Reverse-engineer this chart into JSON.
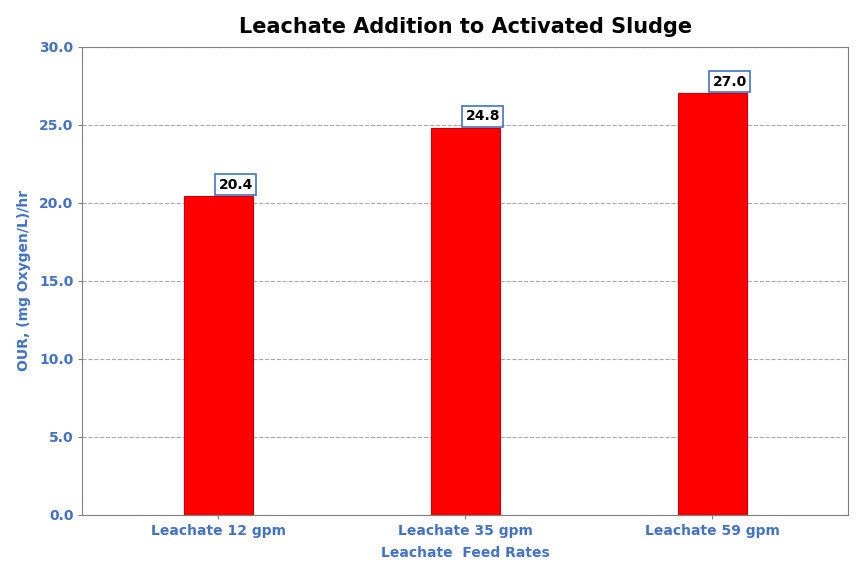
{
  "title": "Leachate Addition to Activated Sludge",
  "categories": [
    "Leachate 12 gpm",
    "Leachate 35 gpm",
    "Leachate 59 gpm"
  ],
  "values": [
    20.4,
    24.8,
    27.0
  ],
  "bar_color": "#FF0000",
  "bar_edge_color": "#CC0000",
  "xlabel": "Leachate  Feed Rates",
  "ylabel": "OUR, (mg Oxygen/L)/hr",
  "ylim": [
    0,
    30
  ],
  "yticks": [
    0.0,
    5.0,
    10.0,
    15.0,
    20.0,
    25.0,
    30.0
  ],
  "grid_color": "#AAAAAA",
  "background_color": "#FFFFFF",
  "plot_bg_color": "#FFFFFF",
  "title_fontsize": 15,
  "label_fontsize": 10,
  "tick_fontsize": 10,
  "annotation_fontsize": 10,
  "annotation_box_facecolor": "#FFFFFF",
  "annotation_box_edgecolor": "#4472C4",
  "bar_width": 0.28,
  "tick_color": "#4472C4",
  "label_color": "#4472C4",
  "spine_color": "#808080"
}
